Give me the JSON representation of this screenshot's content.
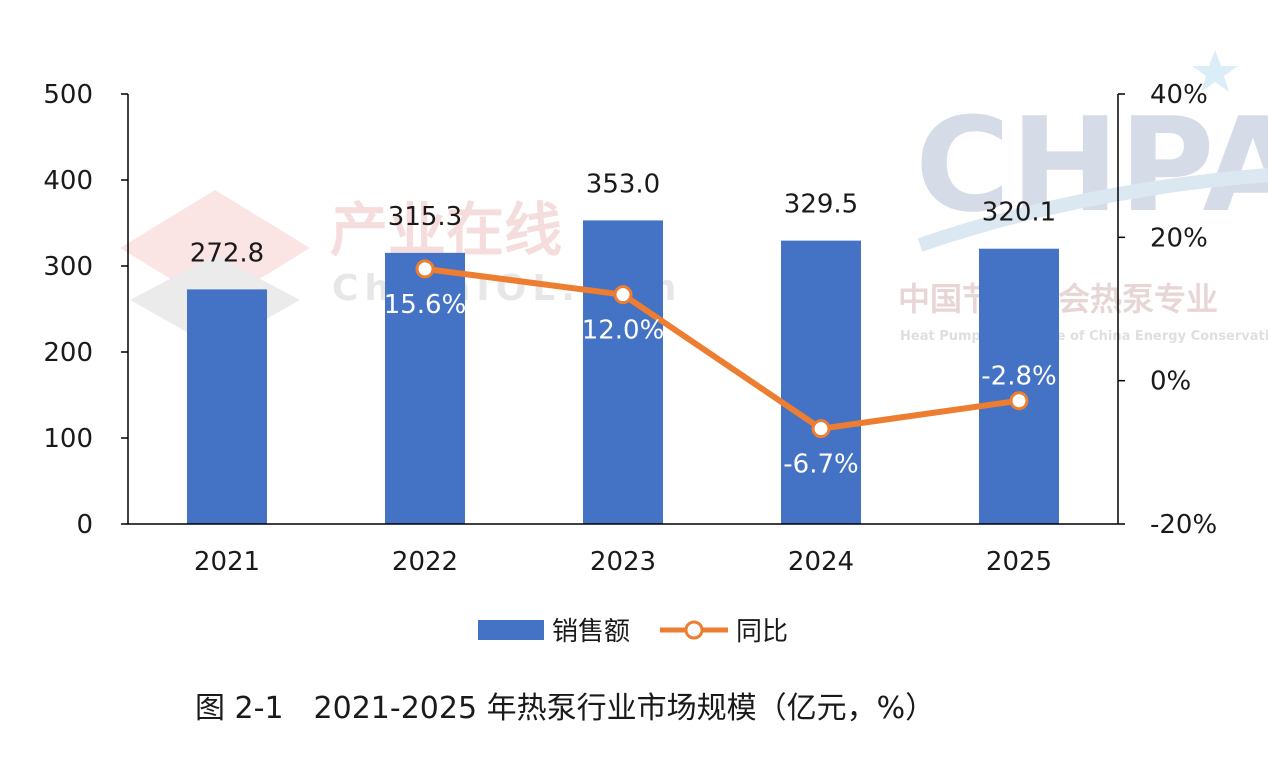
{
  "colors": {
    "bar": "#4472C4",
    "line": "#ED7D31",
    "axis": "#000000",
    "text": "#1a1a1a"
  },
  "chart_data": {
    "type": "bar",
    "categories": [
      "2021",
      "2022",
      "2023",
      "2024",
      "2025"
    ],
    "series": [
      {
        "name": "销售额",
        "type": "bar",
        "axis": "left",
        "values": [
          272.8,
          315.3,
          353.0,
          329.5,
          320.1
        ],
        "labels": [
          "272.8",
          "315.3",
          "353.0",
          "329.5",
          "320.1"
        ]
      },
      {
        "name": "同比",
        "type": "line",
        "axis": "right",
        "values": [
          null,
          15.6,
          12.0,
          -6.7,
          -2.8
        ],
        "labels": [
          "",
          "15.6%",
          "12.0%",
          "-6.7%",
          "-2.8%"
        ]
      }
    ],
    "left_axis": {
      "ylim": [
        0,
        500
      ],
      "ticks": [
        "0",
        "100",
        "200",
        "300",
        "400",
        "500"
      ]
    },
    "right_axis": {
      "ylim": [
        -20,
        40
      ],
      "ticks": [
        "-20%",
        "0%",
        "20%",
        "40%"
      ]
    },
    "legend": {
      "position": "bottom",
      "items": [
        "销售额",
        "同比"
      ]
    },
    "grid": false
  },
  "caption": "图 2-1　2021-2025 年热泵行业市场规模（亿元，%）",
  "watermarks": {
    "cn1": "产业在线",
    "en1": "ChinaIOL.com",
    "cn2": "中国节能协会热泵专业",
    "en2": "Heat Pump Committee of China Energy Conservation",
    "logo": "CHPA"
  }
}
